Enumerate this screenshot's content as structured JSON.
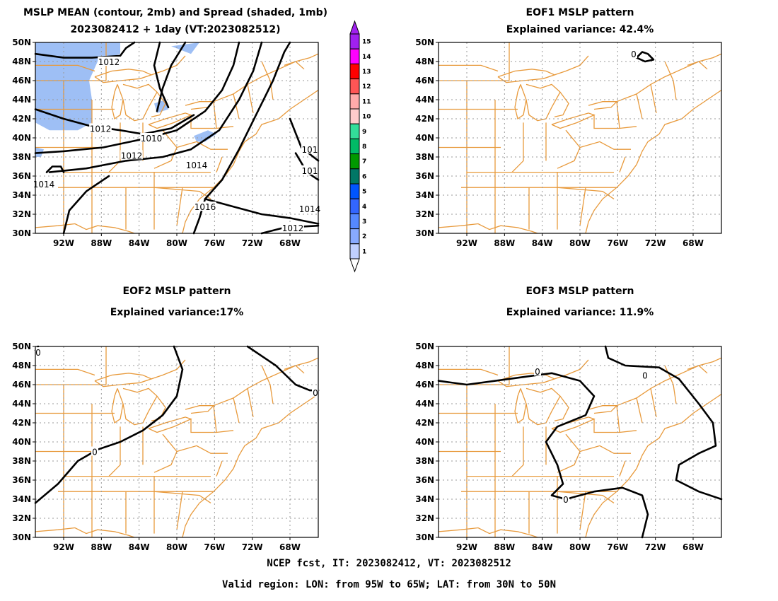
{
  "panels": {
    "p1": {
      "title1": "MSLP MEAN (contour, 2mb) and Spread (shaded, 1mb)",
      "title2": "2023082412 + 1day (VT:2023082512)"
    },
    "p2": {
      "title1": "EOF1 MSLP pattern",
      "title2": "Explained variance: 42.4%"
    },
    "p3": {
      "title1": "EOF2 MSLP pattern",
      "title2": "Explained variance:17%"
    },
    "p4": {
      "title1": "EOF3 MSLP pattern",
      "title2": "Explained variance: 11.9%"
    }
  },
  "axes": {
    "lat_labels": [
      "50N",
      "48N",
      "46N",
      "44N",
      "42N",
      "40N",
      "38N",
      "36N",
      "34N",
      "32N",
      "30N"
    ],
    "lon_labels": [
      "92W",
      "88W",
      "84W",
      "80W",
      "76W",
      "72W",
      "68W"
    ]
  },
  "contour_labels_p1": [
    "1012",
    "1012",
    "1010",
    "1012",
    "1014",
    "1014",
    "1016",
    "1014",
    "1012",
    "101",
    "101"
  ],
  "zero_label": "0",
  "colorbar": {
    "labels": [
      "15",
      "14",
      "13",
      "12",
      "11",
      "10",
      "9",
      "8",
      "7",
      "6",
      "5",
      "4",
      "3",
      "2",
      "1"
    ],
    "colors": [
      "#a020f0",
      "#ff00ff",
      "#ff0000",
      "#ff5555",
      "#ffaaaa",
      "#ffcccc",
      "#33dd99",
      "#00bb66",
      "#009900",
      "#007766",
      "#0055ff",
      "#3366ff",
      "#5588ff",
      "#88aaff",
      "#c0d0ff"
    ]
  },
  "colors": {
    "map_lines": "#e89a3c",
    "contour": "#000000",
    "spread_shade": "#9ebff5",
    "grid": "#999999"
  },
  "footer": {
    "line1": "NCEP fcst, IT: 2023082412, VT: 2023082512",
    "line2": "Valid region: LON: from 95W to 65W; LAT: from 30N to 50N"
  }
}
